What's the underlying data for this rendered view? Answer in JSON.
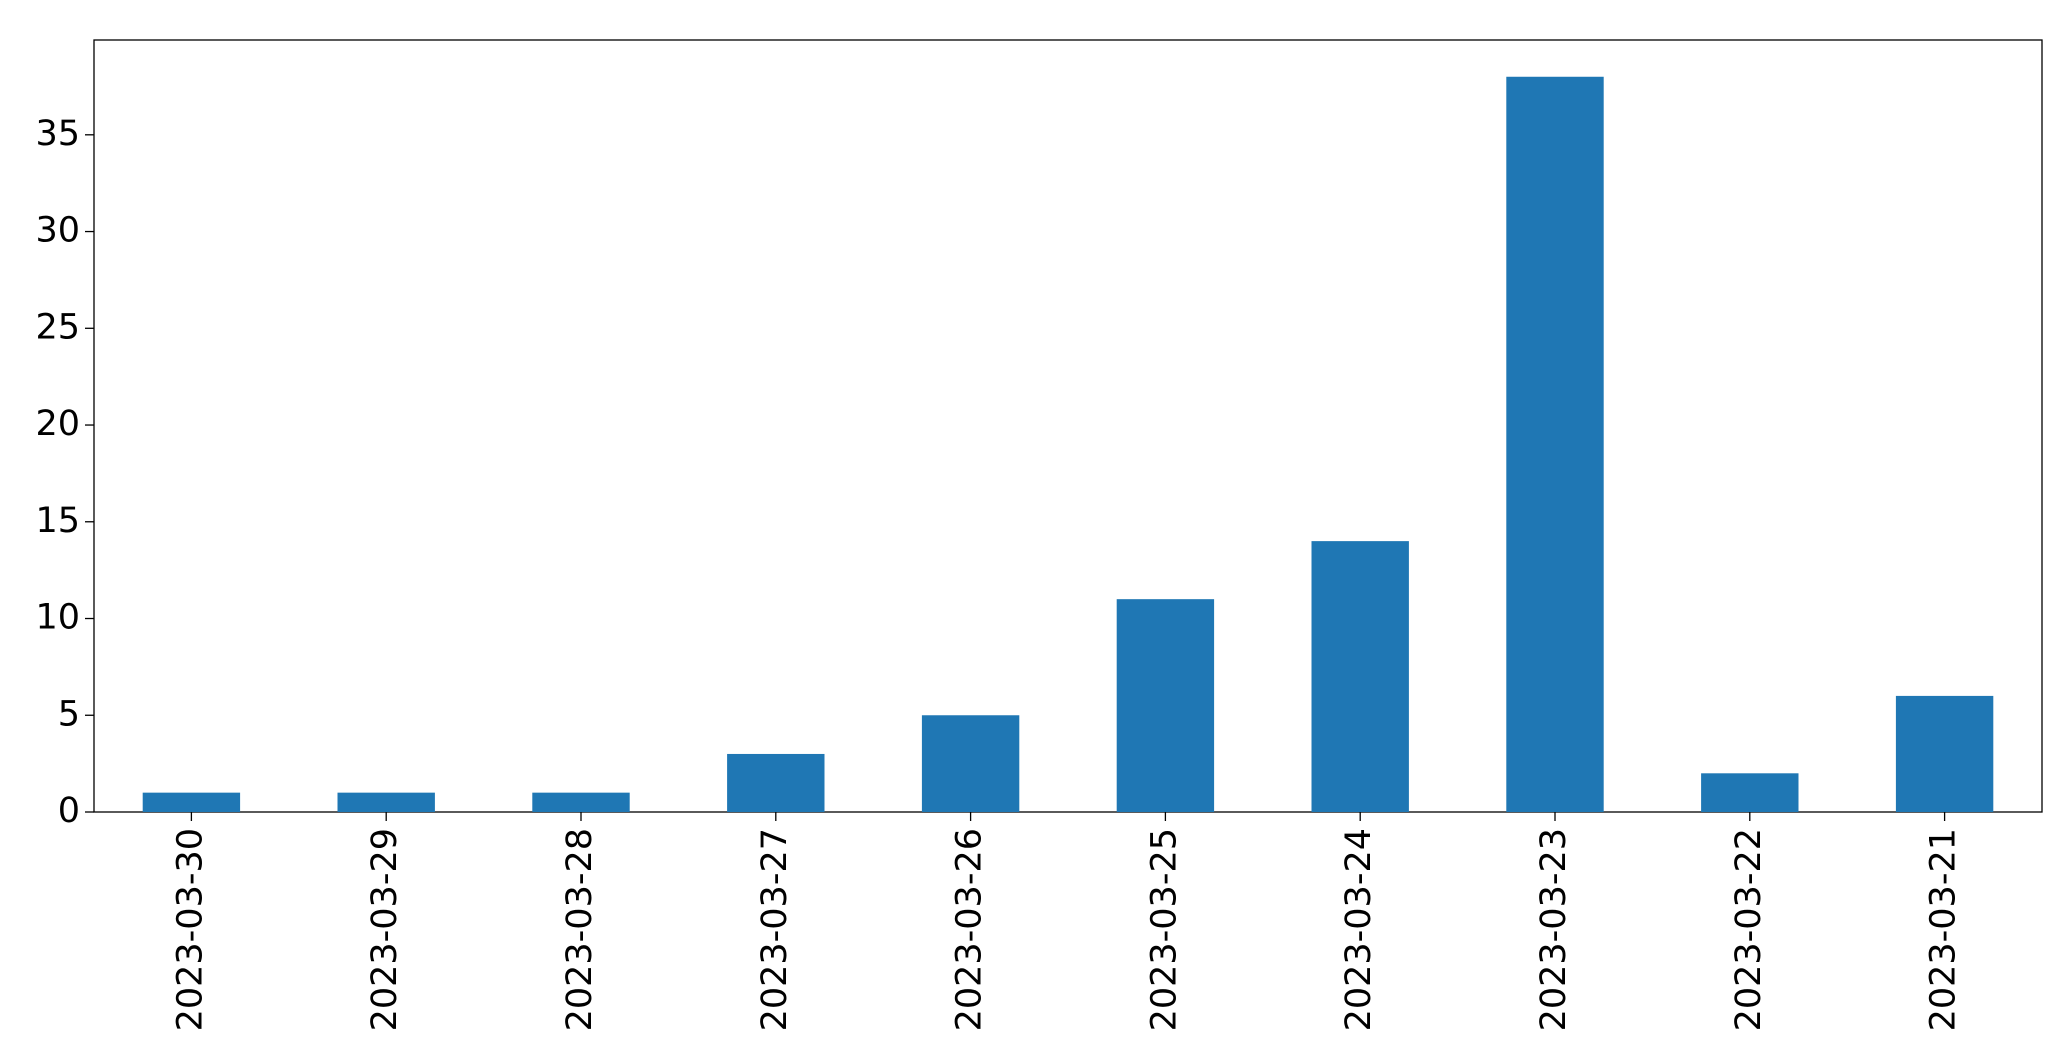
{
  "chart_data": {
    "type": "bar",
    "categories": [
      "2023-03-30",
      "2023-03-29",
      "2023-03-28",
      "2023-03-27",
      "2023-03-26",
      "2023-03-25",
      "2023-03-24",
      "2023-03-23",
      "2023-03-22",
      "2023-03-21"
    ],
    "values": [
      1,
      1,
      1,
      3,
      5,
      11,
      14,
      38,
      2,
      6
    ],
    "color": "#1f77b4",
    "ylim": [
      0,
      39.9
    ],
    "yticks": [
      0,
      5,
      10,
      15,
      20,
      25,
      30,
      35
    ],
    "grid": false
  }
}
